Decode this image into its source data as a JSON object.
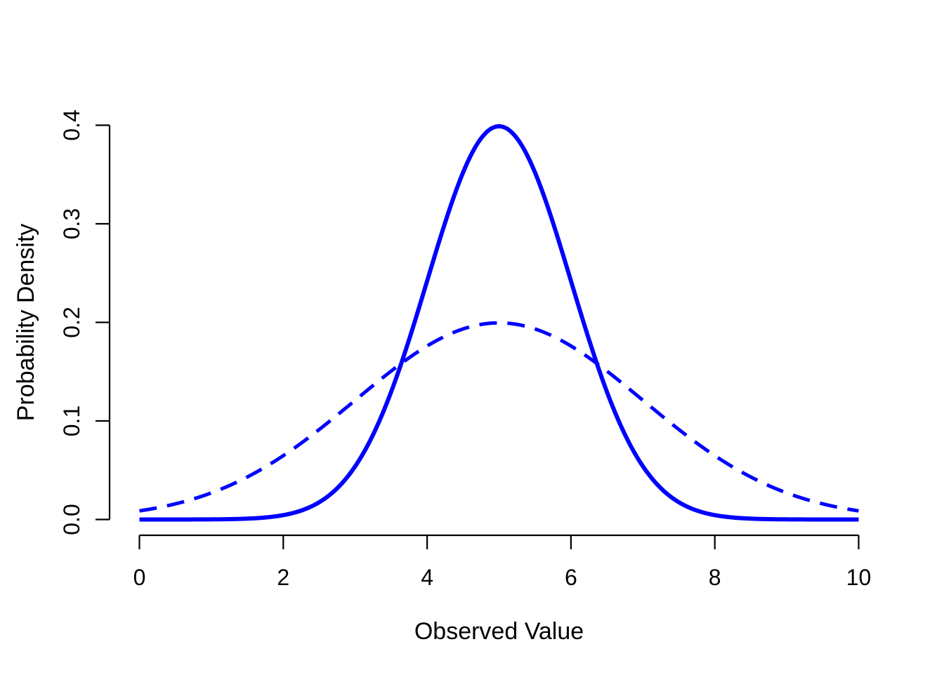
{
  "figure": {
    "background_color": "#ffffff",
    "text_color": "#000000"
  },
  "chart_data": {
    "type": "line",
    "title": "",
    "xlabel": "Observed Value",
    "ylabel": "Probability Density",
    "xlim": [
      0,
      10
    ],
    "ylim": [
      0.0,
      0.4
    ],
    "x_ticks": [
      0,
      2,
      4,
      6,
      8,
      10
    ],
    "x_tick_labels": [
      "0",
      "2",
      "4",
      "6",
      "8",
      "10"
    ],
    "y_ticks": [
      0.0,
      0.1,
      0.2,
      0.3,
      0.4
    ],
    "y_tick_labels": [
      "0.0",
      "0.1",
      "0.2",
      "0.3",
      "0.4"
    ],
    "grid": false,
    "legend": "none",
    "series": [
      {
        "name": "normal-density-mean5-sd1",
        "distribution": "normal",
        "mean": 5,
        "sd": 1,
        "peak_density": 0.39894,
        "color": "#0000FF",
        "line_style": "solid",
        "line_width": 6,
        "sample_x": [
          0,
          1,
          2,
          3,
          4,
          5,
          6,
          7,
          8,
          9,
          10
        ],
        "sample_y": [
          0.0,
          0.00013,
          0.00443,
          0.05399,
          0.24197,
          0.39894,
          0.24197,
          0.05399,
          0.00443,
          0.00013,
          0.0
        ]
      },
      {
        "name": "normal-density-mean5-sd2",
        "distribution": "normal",
        "mean": 5,
        "sd": 2,
        "peak_density": 0.19947,
        "color": "#0000FF",
        "line_style": "dashed",
        "line_width": 5,
        "dash_pattern": [
          25,
          15
        ],
        "sample_x": [
          0,
          1,
          2,
          3,
          4,
          5,
          6,
          7,
          8,
          9,
          10
        ],
        "sample_y": [
          0.00876,
          0.027,
          0.06476,
          0.12099,
          0.17603,
          0.19947,
          0.17603,
          0.12099,
          0.06476,
          0.027,
          0.00876
        ]
      }
    ]
  }
}
